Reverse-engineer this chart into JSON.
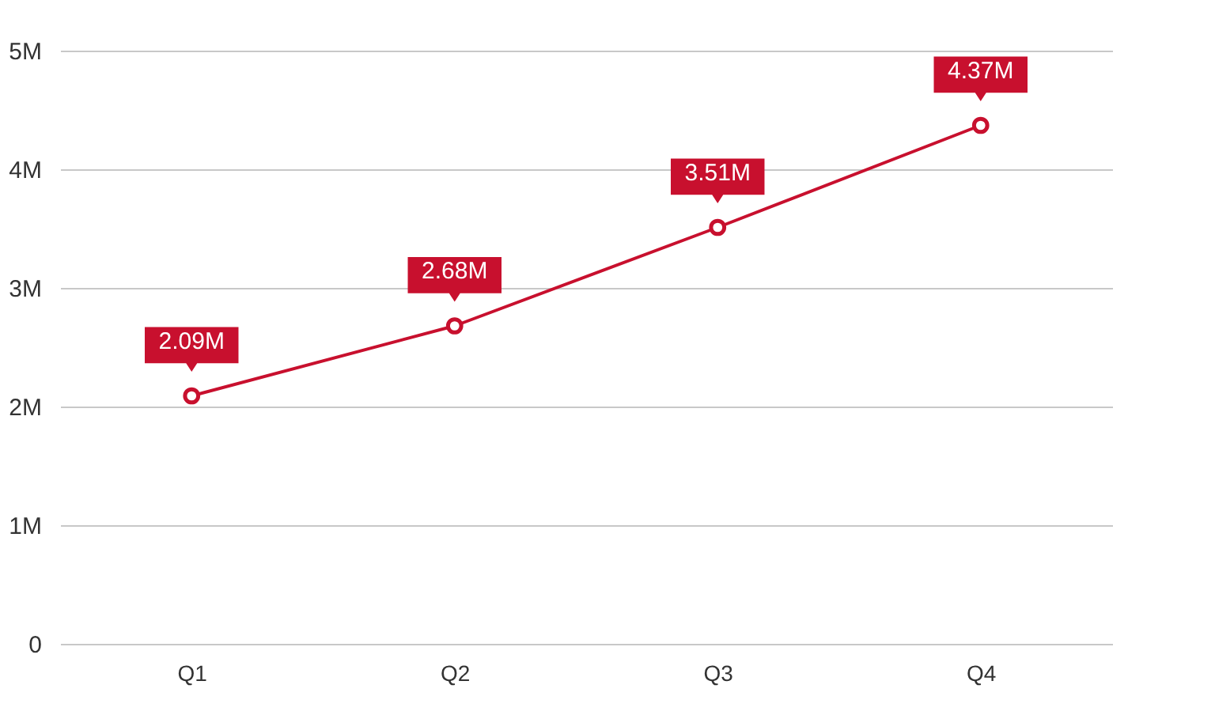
{
  "chart_data": {
    "type": "line",
    "categories": [
      "Q1",
      "Q2",
      "Q3",
      "Q4"
    ],
    "series": [
      {
        "color": "#c8102e",
        "values": [
          2.09,
          2.68,
          3.51,
          4.37
        ],
        "value_labels": [
          "2.09M",
          "2.68M",
          "3.51M",
          "4.37M"
        ]
      }
    ],
    "ylim": [
      0,
      5
    ],
    "yticks": [
      0,
      {
        "value": 1,
        "label": "1M"
      },
      {
        "value": 2,
        "label": "2M"
      },
      {
        "value": 3,
        "label": "3M"
      },
      {
        "value": 4,
        "label": "4M"
      },
      {
        "value": 5,
        "label": "5M"
      }
    ],
    "grid": "y",
    "marker": "circle",
    "line_style": "solid"
  }
}
